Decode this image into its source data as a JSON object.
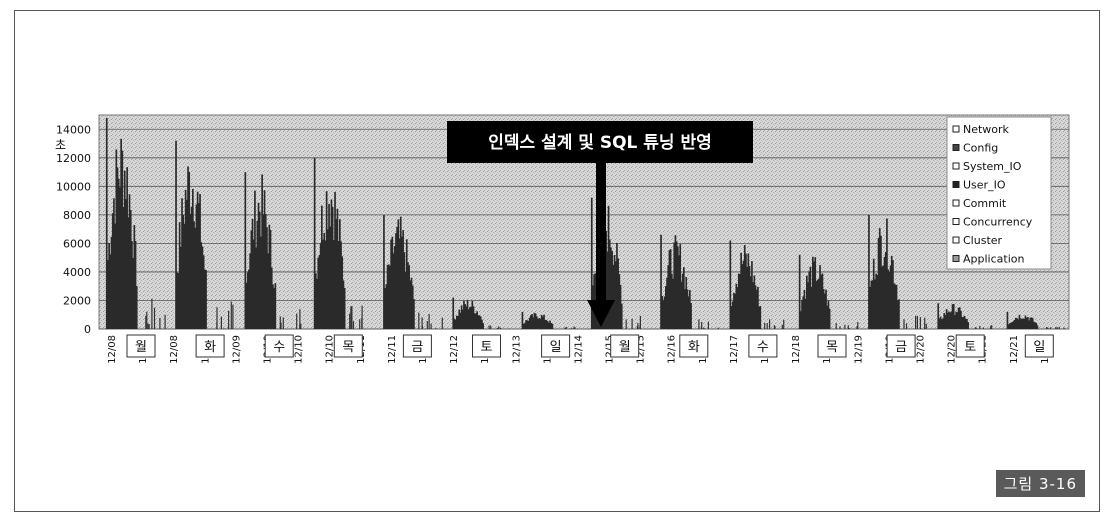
{
  "figure_label": "그림 3-16",
  "chart_data": {
    "type": "area",
    "ylabel": "초",
    "ylim": [
      0,
      15000
    ],
    "yticks": [
      0,
      2000,
      4000,
      6000,
      8000,
      10000,
      12000,
      14000
    ],
    "grid": true,
    "legend_position": "top-right",
    "legend": [
      "Network",
      "Config",
      "System_IO",
      "User_IO",
      "Commit",
      "Concurrency",
      "Cluster",
      "Application"
    ],
    "annotation": "인덱스 설계 및 SQL 튜닝 반영",
    "x_tick_labels": [
      "12/08",
      "12/08",
      "12/08",
      "12/09",
      "12/09",
      "12/10",
      "12/10",
      "12/10",
      "12/11",
      "12/11",
      "12/12",
      "12/12",
      "12/13",
      "12/13",
      "12/14",
      "12/14",
      "12/15",
      "12/15",
      "12/16",
      "12/16",
      "12/17",
      "12/17",
      "12/18",
      "12/18",
      "12/19",
      "12/19",
      "12/20",
      "12/20",
      "12/21",
      "12/21",
      "12/21"
    ],
    "weekday_labels": [
      "월",
      "화",
      "수",
      "목",
      "금",
      "토",
      "일",
      "월",
      "화",
      "수",
      "목",
      "금",
      "토",
      "일"
    ],
    "days": [
      "12/08",
      "12/09",
      "12/10",
      "12/11",
      "12/12",
      "12/13",
      "12/14",
      "12/15",
      "12/16",
      "12/17",
      "12/18",
      "12/19",
      "12/20",
      "12/21"
    ],
    "daily_peak": [
      14800,
      13200,
      11000,
      12000,
      8000,
      2200,
      1200,
      9200,
      6600,
      6200,
      5200,
      8000,
      1800,
      1200
    ],
    "series_values": [
      {
        "name": "User_IO",
        "values": [
          14800,
          13200,
          11000,
          12000,
          8000,
          2200,
          1200,
          9200,
          6600,
          6200,
          5200,
          8000,
          1800,
          1200
        ]
      }
    ]
  }
}
